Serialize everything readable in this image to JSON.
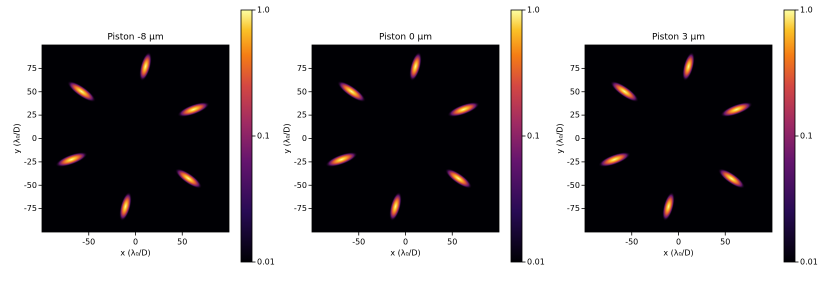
{
  "chart_data": [
    {
      "type": "heatmap",
      "title": "Piston -8 μm",
      "xlabel": "x (λ₀/D)",
      "ylabel": "y (λ₀/D)",
      "xlim": [
        -100,
        100
      ],
      "ylim": [
        -100,
        100
      ],
      "xticks": [
        -50,
        0,
        50
      ],
      "yticks": [
        -75,
        -50,
        -25,
        0,
        25,
        50,
        75
      ],
      "colorbar": {
        "scale": "log",
        "lim": [
          0.01,
          1
        ],
        "ticks": [
          0.01,
          0.1,
          {
            "value": 1,
            "label": "1.0"
          }
        ]
      }
    },
    {
      "type": "heatmap",
      "title": "Piston 0 μm",
      "xlabel": "x (λ₀/D)",
      "ylabel": "y (λ₀/D)",
      "xlim": [
        -100,
        100
      ],
      "ylim": [
        -100,
        100
      ],
      "xticks": [
        -50,
        0,
        50
      ],
      "yticks": [
        -75,
        -50,
        -25,
        0,
        25,
        50,
        75
      ],
      "colorbar": {
        "scale": "log",
        "lim": [
          0.01,
          1
        ],
        "ticks": [
          0.01,
          0.1,
          {
            "value": 1,
            "label": "1.0"
          }
        ]
      }
    },
    {
      "type": "heatmap",
      "title": "Piston 3 μm",
      "xlabel": "x (λ₀/D)",
      "ylabel": "y (λ₀/D)",
      "xlim": [
        -100,
        100
      ],
      "ylim": [
        -100,
        100
      ],
      "xticks": [
        -50,
        0,
        50
      ],
      "yticks": [
        -75,
        -50,
        -25,
        0,
        25,
        50,
        75
      ],
      "colorbar": {
        "scale": "log",
        "lim": [
          0.01,
          1
        ],
        "ticks": [
          0.01,
          0.1,
          {
            "value": 1,
            "label": "1.0"
          }
        ]
      }
    }
  ]
}
